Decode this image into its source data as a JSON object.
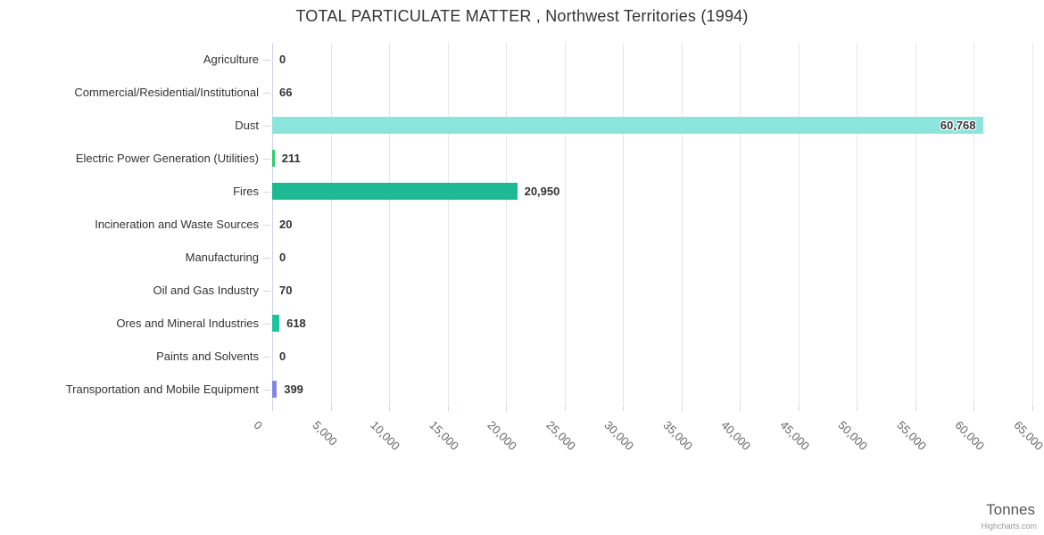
{
  "credit": "Highcharts.com",
  "colors": {
    "background": "#ffffff",
    "grid": "#e6e6e6",
    "axis": "#ccd6eb",
    "title_text": "#333333",
    "category_label": "#333333",
    "value_label": "#333333",
    "x_label": "#666666",
    "axis_title": "#555555",
    "credit": "#999999"
  },
  "chart_data": {
    "type": "bar",
    "orientation": "horizontal",
    "title": "TOTAL PARTICULATE MATTER , Northwest Territories (1994)",
    "xlabel": "Tonnes",
    "ylabel": "",
    "xlim": [
      0,
      65000
    ],
    "tick_step": 5000,
    "x_ticks": [
      "0",
      "5,000",
      "10,000",
      "15,000",
      "20,000",
      "25,000",
      "30,000",
      "35,000",
      "40,000",
      "45,000",
      "50,000",
      "55,000",
      "60,000",
      "65,000"
    ],
    "grid": true,
    "legend": false,
    "categories": [
      "Agriculture",
      "Commercial/Residential/Institutional",
      "Dust",
      "Electric Power Generation (Utilities)",
      "Fires",
      "Incineration and Waste Sources",
      "Manufacturing",
      "Oil and Gas Industry",
      "Ores and Mineral Industries",
      "Paints and Solvents",
      "Transportation and Mobile Equipment"
    ],
    "values": [
      0,
      66,
      60768,
      211,
      20950,
      20,
      0,
      70,
      618,
      0,
      399
    ],
    "value_labels": [
      "0",
      "66",
      "60,768",
      "211",
      "20,950",
      "20",
      "0",
      "70",
      "618",
      "0",
      "399"
    ],
    "point_colors": [
      null,
      null,
      "#8ce5dc",
      "#33cc69",
      "#1cb994",
      null,
      null,
      null,
      "#1fc3a0",
      null,
      "#8085e9"
    ],
    "label_inside": [
      false,
      false,
      true,
      false,
      false,
      false,
      false,
      false,
      false,
      false,
      false
    ]
  }
}
